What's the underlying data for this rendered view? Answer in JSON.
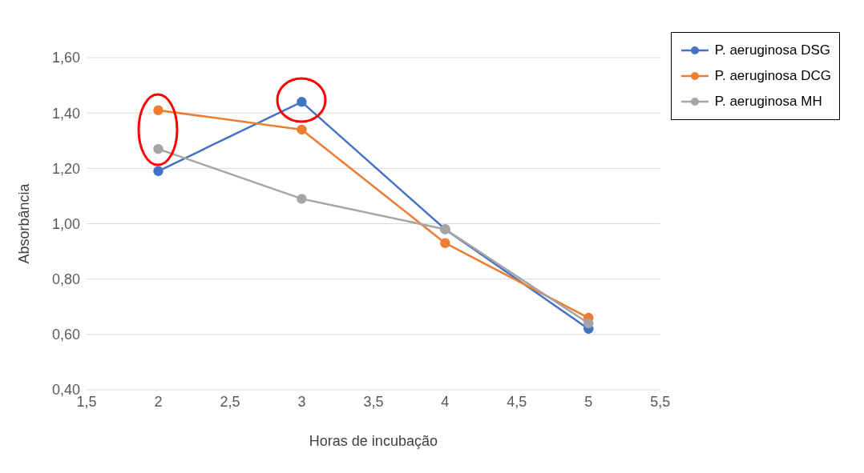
{
  "chart_data": {
    "type": "line",
    "xlabel": "Horas de incubação",
    "ylabel": "Absorbância",
    "x": [
      2,
      3,
      4,
      5
    ],
    "series": [
      {
        "name": "P. aeruginosa DSG",
        "color": "#4472c4",
        "values": [
          1.19,
          1.44,
          0.98,
          0.62
        ]
      },
      {
        "name": "P. aeruginosa DCG",
        "color": "#ed7d31",
        "values": [
          1.41,
          1.34,
          0.93,
          0.66
        ]
      },
      {
        "name": "P. aeruginosa MH",
        "color": "#a5a5a5",
        "values": [
          1.27,
          1.09,
          0.98,
          0.64
        ]
      }
    ],
    "xlim": [
      1.5,
      5.5
    ],
    "xticks": [
      {
        "value": 1.5,
        "label": "1,5"
      },
      2,
      {
        "value": 2.5,
        "label": "2,5"
      },
      3,
      {
        "value": 3.5,
        "label": "3,5"
      },
      4,
      {
        "value": 4.5,
        "label": "4,5"
      },
      5,
      {
        "value": 5.5,
        "label": "5,5"
      }
    ],
    "ylim": [
      0.4,
      1.6
    ],
    "yticks": [
      {
        "value": 0.4,
        "label": "0,40"
      },
      {
        "value": 0.6,
        "label": "0,60"
      },
      {
        "value": 0.8,
        "label": "0,80"
      },
      {
        "value": 1.0,
        "label": "1,00"
      },
      {
        "value": 1.2,
        "label": "1,20"
      },
      {
        "value": 1.4,
        "label": "1,40"
      },
      {
        "value": 1.6,
        "label": "1,60"
      }
    ],
    "grid": "y",
    "legend": "top right",
    "marker": "circle",
    "line_style": "solid"
  }
}
